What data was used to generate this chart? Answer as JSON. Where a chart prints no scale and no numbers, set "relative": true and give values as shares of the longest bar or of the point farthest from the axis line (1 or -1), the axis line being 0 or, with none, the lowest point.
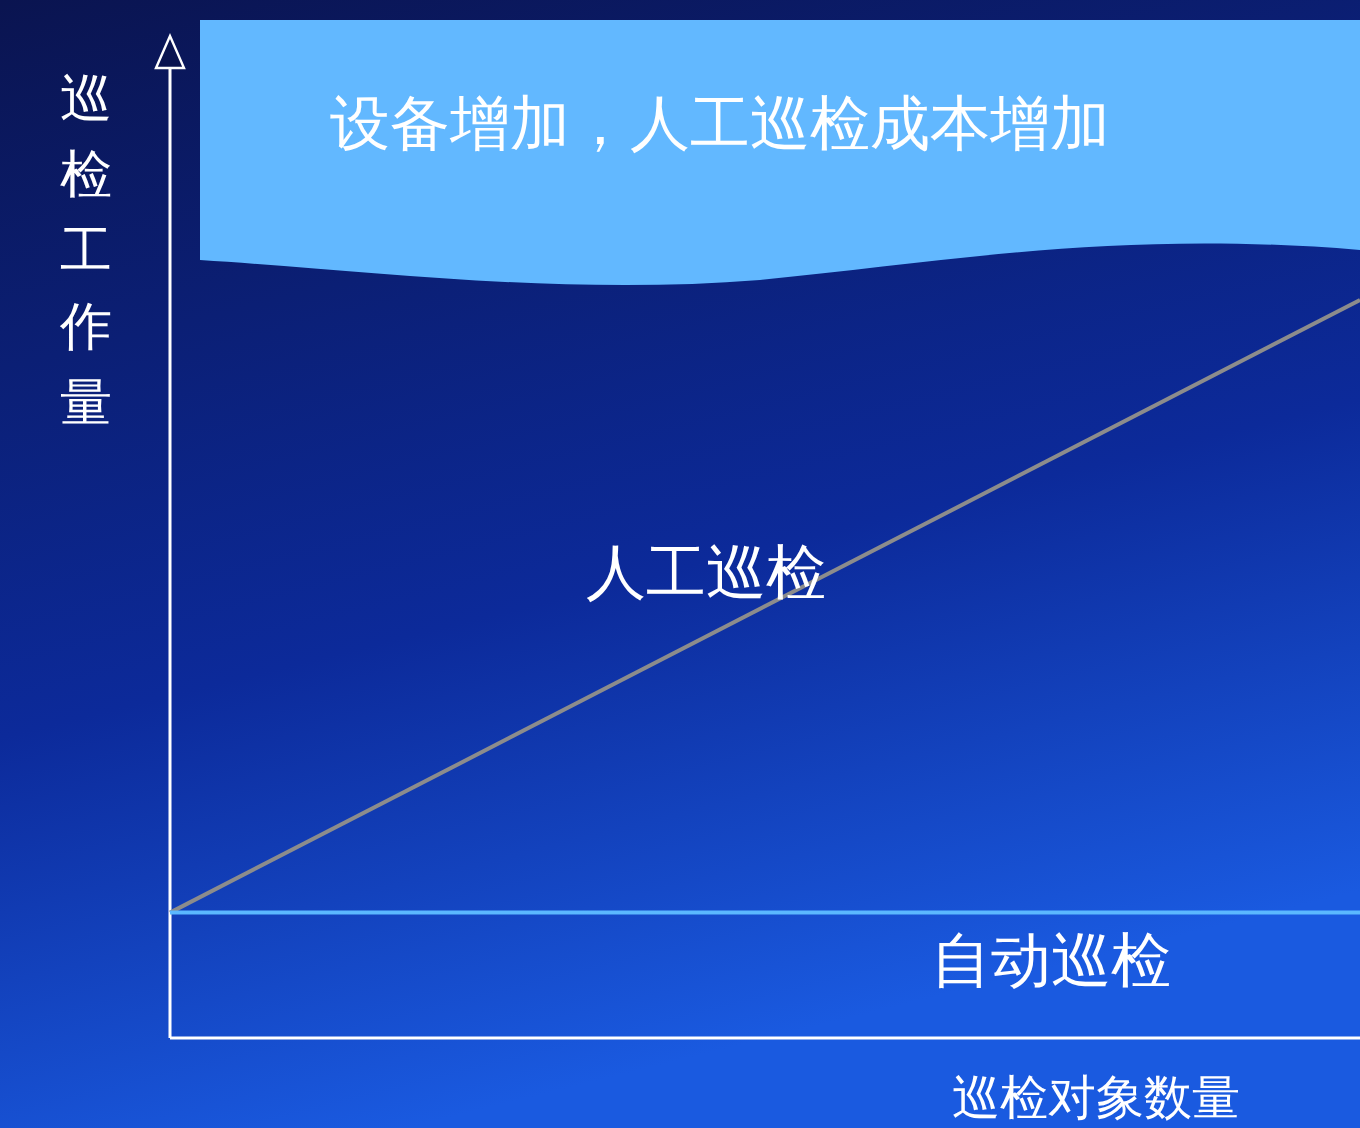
{
  "chart_data": {
    "type": "line",
    "title": "设备增加，人工巡检成本增加",
    "xlabel": "巡检对象数量",
    "ylabel": "巡检工作量",
    "relative": true,
    "legend": false,
    "categories": [
      null,
      null
    ],
    "series": [
      {
        "name": "人工巡检",
        "color": "#8c8c8c",
        "values": [
          0.17,
          1
        ]
      },
      {
        "name": "自动巡检",
        "color": "#5bb8ff",
        "values": [
          0.17,
          0.17
        ]
      }
    ]
  }
}
